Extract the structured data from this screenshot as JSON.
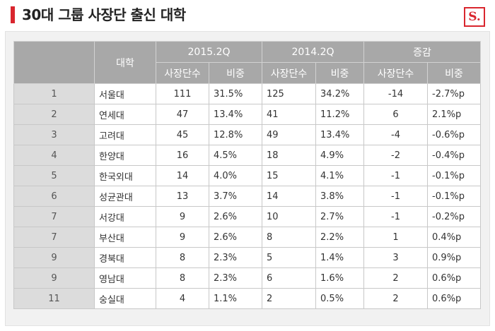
{
  "title": "30대 그룹 사장단 출신 대학",
  "logo_text": "S.",
  "colors": {
    "accent": "#d9262e",
    "header_bg": "#a8a8a8",
    "rank_bg": "#dcdcdc"
  },
  "table": {
    "univ_header": "대학",
    "group_2015": "2015.2Q",
    "group_2014": "2014.2Q",
    "group_change": "증감",
    "sub_count": "사장단수",
    "sub_ratio": "비중",
    "rows": [
      [
        "1",
        "서울대",
        "111",
        "31.5%",
        "125",
        "34.2%",
        "-14",
        "-2.7%p"
      ],
      [
        "2",
        "연세대",
        "47",
        "13.4%",
        "41",
        "11.2%",
        "6",
        "2.1%p"
      ],
      [
        "3",
        "고려대",
        "45",
        "12.8%",
        "49",
        "13.4%",
        "-4",
        "-0.6%p"
      ],
      [
        "4",
        "한양대",
        "16",
        "4.5%",
        "18",
        "4.9%",
        "-2",
        "-0.4%p"
      ],
      [
        "5",
        "한국외대",
        "14",
        "4.0%",
        "15",
        "4.1%",
        "-1",
        "-0.1%p"
      ],
      [
        "6",
        "성균관대",
        "13",
        "3.7%",
        "14",
        "3.8%",
        "-1",
        "-0.1%p"
      ],
      [
        "7",
        "서강대",
        "9",
        "2.6%",
        "10",
        "2.7%",
        "-1",
        "-0.2%p"
      ],
      [
        "7",
        "부산대",
        "9",
        "2.6%",
        "8",
        "2.2%",
        "1",
        "0.4%p"
      ],
      [
        "9",
        "경북대",
        "8",
        "2.3%",
        "5",
        "1.4%",
        "3",
        "0.9%p"
      ],
      [
        "9",
        "영남대",
        "8",
        "2.3%",
        "6",
        "1.6%",
        "2",
        "0.6%p"
      ],
      [
        "11",
        "숭실대",
        "4",
        "1.1%",
        "2",
        "0.5%",
        "2",
        "0.6%p"
      ]
    ]
  }
}
